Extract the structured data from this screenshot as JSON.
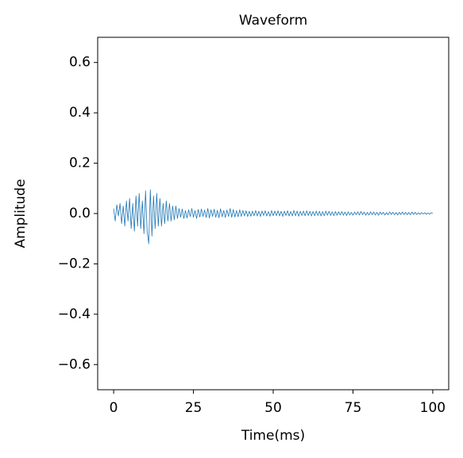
{
  "chart_data": {
    "type": "line",
    "title": "Waveform",
    "x_label": "Time(ms)",
    "y_label": "Amplitude",
    "xlim": [
      -5,
      105
    ],
    "ylim": [
      -0.7,
      0.7
    ],
    "xticks": [
      0,
      25,
      50,
      75,
      100
    ],
    "yticks": [
      {
        "value": -0.6,
        "label": "−0.6"
      },
      {
        "value": -0.4,
        "label": "−0.4"
      },
      {
        "value": -0.2,
        "label": "−0.2"
      },
      {
        "value": 0,
        "label": "0.0"
      },
      0.2,
      0.4,
      0.6
    ],
    "x": [
      0,
      0.5,
      1,
      1.5,
      2,
      2.5,
      3,
      3.5,
      4,
      4.5,
      5,
      5.5,
      6,
      6.5,
      7,
      7.5,
      8,
      8.5,
      9,
      9.5,
      10,
      10.5,
      11,
      11.5,
      12,
      12.5,
      13,
      13.5,
      14,
      14.5,
      15,
      15.5,
      16,
      16.5,
      17,
      17.5,
      18,
      18.5,
      19,
      19.5,
      20,
      20.5,
      21,
      21.5,
      22,
      22.5,
      23,
      23.5,
      24,
      24.5,
      25,
      25.5,
      26,
      26.5,
      27,
      27.5,
      28,
      28.5,
      29,
      29.5,
      30,
      30.5,
      31,
      31.5,
      32,
      32.5,
      33,
      33.5,
      34,
      34.5,
      35,
      35.5,
      36,
      36.5,
      37,
      37.5,
      38,
      38.5,
      39,
      39.5,
      40,
      40.5,
      41,
      41.5,
      42,
      42.5,
      43,
      43.5,
      44,
      44.5,
      45,
      45.5,
      46,
      46.5,
      47,
      47.5,
      48,
      48.5,
      49,
      49.5,
      50,
      50.5,
      51,
      51.5,
      52,
      52.5,
      53,
      53.5,
      54,
      54.5,
      55,
      55.5,
      56,
      56.5,
      57,
      57.5,
      58,
      58.5,
      59,
      59.5,
      60,
      60.5,
      61,
      61.5,
      62,
      62.5,
      63,
      63.5,
      64,
      64.5,
      65,
      65.5,
      66,
      66.5,
      67,
      67.5,
      68,
      68.5,
      69,
      69.5,
      70,
      70.5,
      71,
      71.5,
      72,
      72.5,
      73,
      73.5,
      74,
      74.5,
      75,
      75.5,
      76,
      76.5,
      77,
      77.5,
      78,
      78.5,
      79,
      79.5,
      80,
      80.5,
      81,
      81.5,
      82,
      82.5,
      83,
      83.5,
      84,
      84.5,
      85,
      85.5,
      86,
      86.5,
      87,
      87.5,
      88,
      88.5,
      89,
      89.5,
      90,
      90.5,
      91,
      91.5,
      92,
      92.5,
      93,
      93.5,
      94,
      94.5,
      95,
      95.5,
      96,
      96.5,
      97,
      97.5,
      98,
      98.5,
      99,
      99.5,
      100
    ],
    "series": [
      {
        "name": "Waveform",
        "color": "#1f77b4",
        "values": [
          0.02,
          -0.03,
          0.035,
          -0.01,
          0.04,
          -0.04,
          0.03,
          -0.05,
          0.05,
          -0.03,
          0.06,
          -0.06,
          0.04,
          -0.07,
          0.07,
          -0.05,
          0.08,
          -0.06,
          0.05,
          -0.08,
          0.09,
          -0.07,
          -0.12,
          0.095,
          -0.09,
          0.07,
          -0.06,
          0.08,
          -0.05,
          0.06,
          -0.05,
          0.04,
          -0.04,
          0.05,
          -0.03,
          0.04,
          -0.03,
          0.03,
          -0.025,
          0.03,
          -0.02,
          0.02,
          -0.015,
          0.018,
          -0.02,
          0.012,
          -0.018,
          0.015,
          -0.012,
          0.02,
          -0.015,
          0.012,
          -0.02,
          0.016,
          -0.014,
          0.018,
          -0.012,
          0.014,
          -0.016,
          0.02,
          -0.018,
          0.015,
          -0.012,
          0.017,
          -0.015,
          0.013,
          -0.017,
          0.019,
          -0.013,
          0.012,
          -0.016,
          0.014,
          -0.012,
          0.02,
          -0.015,
          0.016,
          -0.014,
          0.012,
          -0.013,
          0.015,
          -0.012,
          0.012,
          -0.01,
          0.011,
          -0.012,
          0.009,
          -0.011,
          0.01,
          -0.009,
          0.012,
          -0.01,
          0.009,
          -0.012,
          0.01,
          -0.008,
          0.011,
          -0.01,
          0.008,
          -0.011,
          0.012,
          -0.009,
          0.01,
          -0.009,
          0.011,
          -0.01,
          0.009,
          -0.012,
          0.01,
          -0.008,
          0.011,
          -0.01,
          0.008,
          -0.01,
          0.012,
          -0.009,
          0.01,
          -0.011,
          0.009,
          -0.008,
          0.01,
          -0.009,
          0.011,
          -0.008,
          0.009,
          -0.01,
          0.008,
          -0.009,
          0.01,
          -0.008,
          0.009,
          -0.01,
          0.008,
          -0.009,
          0.01,
          -0.007,
          0.009,
          -0.008,
          0.007,
          -0.009,
          0.008,
          -0.007,
          0.007,
          -0.006,
          0.008,
          -0.007,
          0.006,
          -0.008,
          0.007,
          -0.006,
          0.005,
          -0.007,
          0.006,
          -0.005,
          0.007,
          -0.006,
          0.008,
          -0.005,
          0.006,
          -0.007,
          0.005,
          -0.006,
          0.007,
          -0.005,
          0.006,
          -0.006,
          0.005,
          -0.007,
          0.006,
          -0.004,
          0.005,
          -0.006,
          0.004,
          -0.005,
          0.006,
          -0.004,
          0.005,
          -0.005,
          0.004,
          -0.006,
          0.005,
          -0.004,
          0.006,
          -0.004,
          0.005,
          -0.005,
          0.004,
          -0.005,
          0.006,
          -0.004,
          0.005,
          -0.004,
          0.003,
          -0.003,
          0.004,
          -0.002,
          0.003,
          -0.003,
          0.002,
          -0.003,
          0.003,
          0.001
        ]
      }
    ]
  }
}
